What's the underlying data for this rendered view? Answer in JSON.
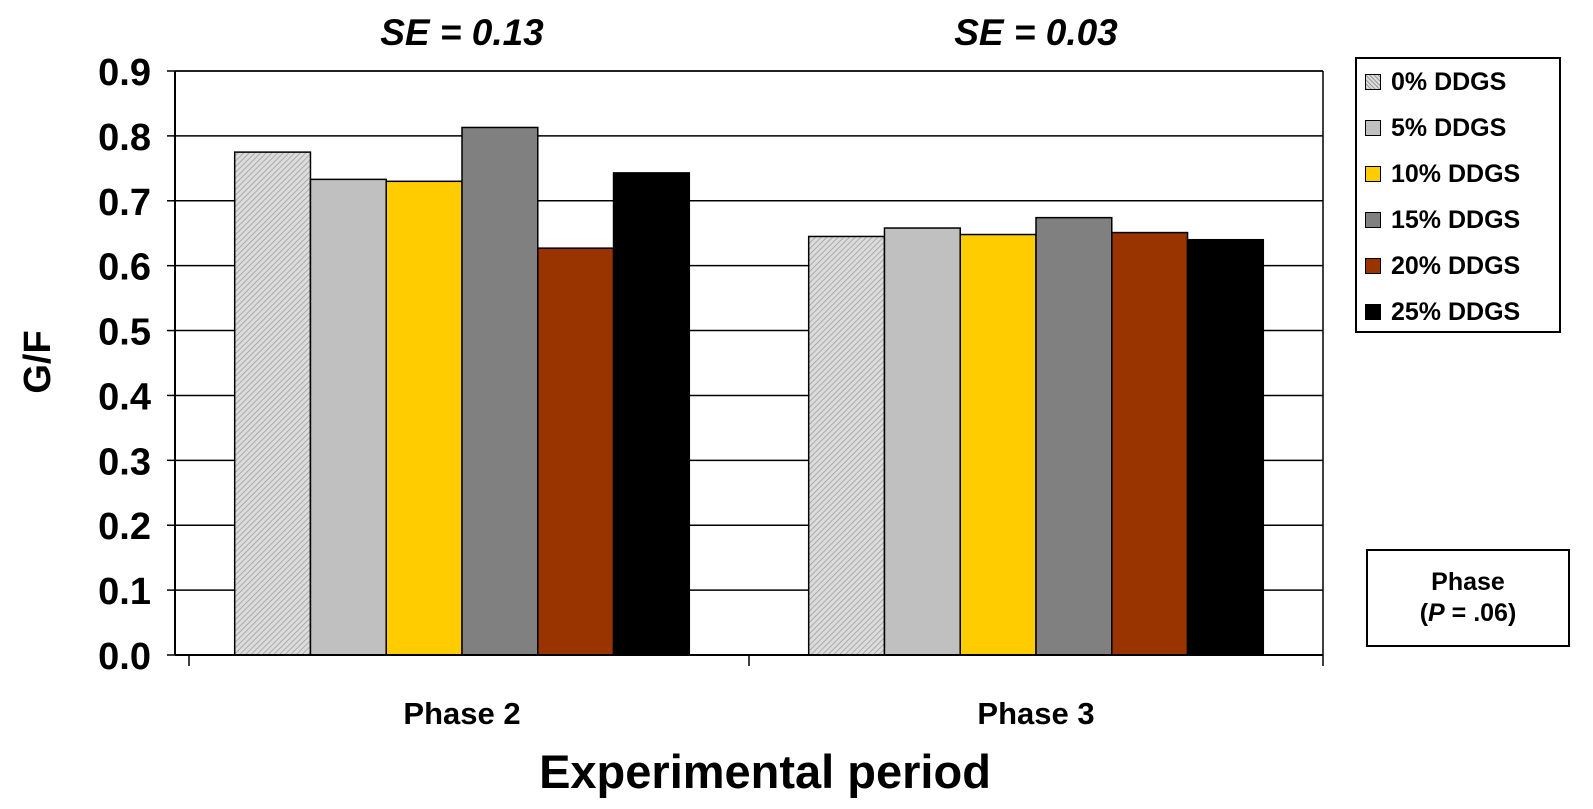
{
  "chart_data": {
    "type": "bar",
    "categories": [
      "Phase 2",
      "Phase 3"
    ],
    "series": [
      {
        "name": "0% DDGS",
        "values": [
          0.775,
          0.645
        ],
        "color": "#d6d6d6",
        "pattern": "hatch"
      },
      {
        "name": "5% DDGS",
        "values": [
          0.733,
          0.658
        ],
        "color": "#c0c0c0"
      },
      {
        "name": "10% DDGS",
        "values": [
          0.73,
          0.648
        ],
        "color": "#ffcc00"
      },
      {
        "name": "15% DDGS",
        "values": [
          0.813,
          0.674
        ],
        "color": "#808080"
      },
      {
        "name": "20% DDGS",
        "values": [
          0.627,
          0.651
        ],
        "color": "#993300"
      },
      {
        "name": "25% DDGS",
        "values": [
          0.743,
          0.64
        ],
        "color": "#000000"
      }
    ],
    "annotations_top": [
      "SE = 0.13",
      "SE = 0.03"
    ],
    "xlabel": "Experimental period",
    "ylabel": "G/F",
    "ylim": [
      0,
      0.9
    ],
    "yticks": [
      "0.0",
      "0.1",
      "0.2",
      "0.3",
      "0.4",
      "0.5",
      "0.6",
      "0.7",
      "0.8",
      "0.9"
    ],
    "grid": true,
    "legend_position": "right",
    "phase_box": {
      "line1": "Phase",
      "line2_open": "(",
      "line2_italic": "P",
      "line2_rest": " = .06)"
    }
  }
}
